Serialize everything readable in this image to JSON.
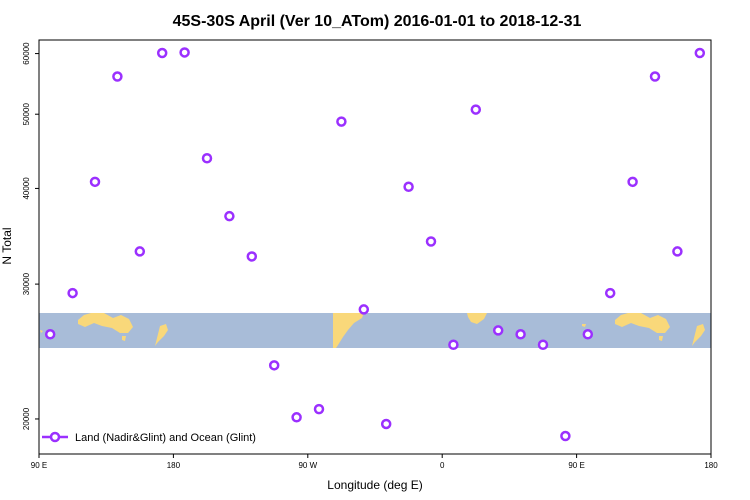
{
  "chart_data": {
    "type": "scatter",
    "title": "45S-30S April (Ver 10_ATom)   2016-01-01 to 2018-12-31",
    "xlabel": "Longitude (deg E)",
    "ylabel": "N Total",
    "x_ticks": [
      {
        "value": 90,
        "label": "90 E"
      },
      {
        "value": 180,
        "label": "180"
      },
      {
        "value": 270,
        "label": "90 W"
      },
      {
        "value": 360,
        "label": "0"
      },
      {
        "value": 450,
        "label": "90 E"
      },
      {
        "value": 540,
        "label": "180"
      }
    ],
    "y_ticks": [
      20000,
      30000,
      40000,
      50000,
      60000
    ],
    "xlim": [
      90,
      540
    ],
    "ylim": [
      18000,
      62500
    ],
    "y_scale": "log",
    "grid": false,
    "legend_position": "bottom-left",
    "series": [
      {
        "name": "Land (Nadir&Glint) and Ocean (Glint)",
        "color": "#9b30ff",
        "marker": "open-circle",
        "points": [
          {
            "x": 97.5,
            "y": 25800
          },
          {
            "x": 112.5,
            "y": 29200
          },
          {
            "x": 127.5,
            "y": 40800
          },
          {
            "x": 142.5,
            "y": 56000
          },
          {
            "x": 157.5,
            "y": 33100
          },
          {
            "x": 172.5,
            "y": 60100
          },
          {
            "x": 187.5,
            "y": 60200
          },
          {
            "x": 202.5,
            "y": 43800
          },
          {
            "x": 217.5,
            "y": 36800
          },
          {
            "x": 232.5,
            "y": 32600
          },
          {
            "x": 247.5,
            "y": 23500
          },
          {
            "x": 262.5,
            "y": 20100
          },
          {
            "x": 277.5,
            "y": 20600
          },
          {
            "x": 292.5,
            "y": 48900
          },
          {
            "x": 307.5,
            "y": 27800
          },
          {
            "x": 322.5,
            "y": 19700
          },
          {
            "x": 337.5,
            "y": 40200
          },
          {
            "x": 352.5,
            "y": 34100
          },
          {
            "x": 367.5,
            "y": 25000
          },
          {
            "x": 382.5,
            "y": 50700
          },
          {
            "x": 397.5,
            "y": 26100
          },
          {
            "x": 412.5,
            "y": 25800
          },
          {
            "x": 427.5,
            "y": 25000
          },
          {
            "x": 442.5,
            "y": 19000
          },
          {
            "x": 457.5,
            "y": 25800
          },
          {
            "x": 472.5,
            "y": 29200
          },
          {
            "x": 487.5,
            "y": 40800
          },
          {
            "x": 502.5,
            "y": 56000
          },
          {
            "x": 517.5,
            "y": 33100
          },
          {
            "x": 532.5,
            "y": 60100
          }
        ]
      }
    ],
    "map_strip": {
      "ocean_color": "#a8bcd8",
      "land_color": "#f9d87a"
    }
  }
}
